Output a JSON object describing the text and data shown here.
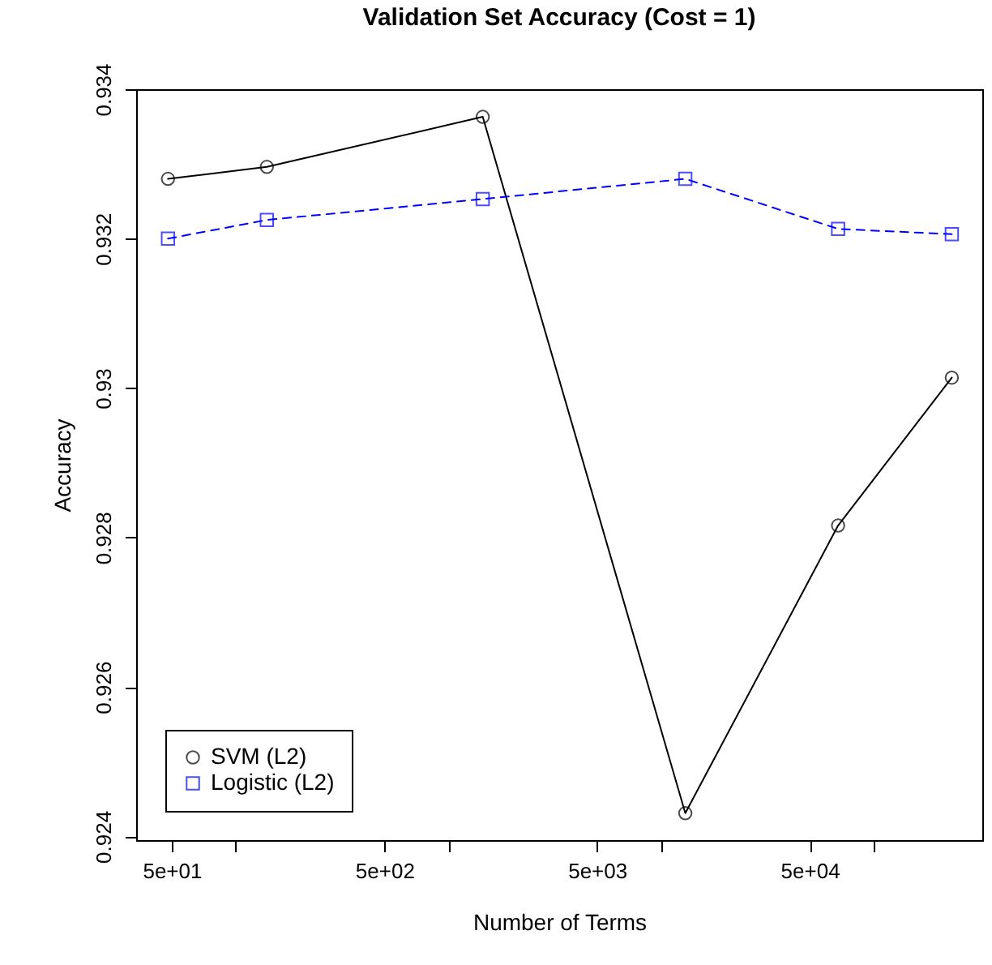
{
  "chart_data": {
    "type": "line",
    "title": "Validation Set Accuracy (Cost = 1)",
    "xlabel": "Number of Terms",
    "ylabel": "Accuracy",
    "log": "x",
    "x": [
      48,
      140,
      1450,
      13000,
      68000,
      233000
    ],
    "series": [
      {
        "name": "SVM (L2)",
        "color": "#000000",
        "marker": "circle",
        "line_style": "solid",
        "values": [
          0.9328,
          0.93296,
          0.93363,
          0.92431,
          0.92816,
          0.93014
        ]
      },
      {
        "name": "Logistic (L2)",
        "color": "#0000ff",
        "marker": "square",
        "line_style": "dashed",
        "values": [
          0.932,
          0.93225,
          0.93253,
          0.9328,
          0.93213,
          0.93206
        ]
      }
    ],
    "xlim": [
      34,
      324000
    ],
    "ylim": [
      0.92395,
      0.934
    ],
    "xticks": [
      {
        "value": 50,
        "label": "5e+01"
      },
      {
        "value": 100,
        "label": null
      },
      {
        "value": 500,
        "label": "5e+02"
      },
      {
        "value": 1000,
        "label": null
      },
      {
        "value": 5000,
        "label": "5e+03"
      },
      {
        "value": 10000,
        "label": null
      },
      {
        "value": 50000,
        "label": "5e+04"
      },
      {
        "value": 100000,
        "label": null
      }
    ],
    "yticks": [
      0.924,
      0.926,
      0.928,
      0.93,
      0.932,
      0.934
    ],
    "legend": "bottom left",
    "grid": false
  }
}
